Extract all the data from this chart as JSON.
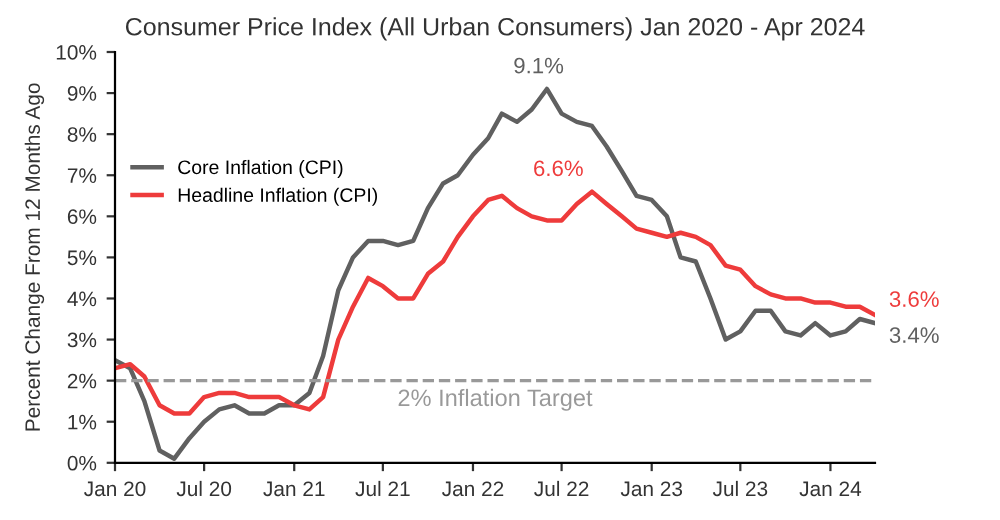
{
  "chart_data": {
    "type": "line",
    "title": "Consumer Price Index (All Urban Consumers) Jan 2020 - Apr 2024",
    "ylabel": "Percent Change From 12 Months Ago",
    "x": [
      "2020-01",
      "2020-02",
      "2020-03",
      "2020-04",
      "2020-05",
      "2020-06",
      "2020-07",
      "2020-08",
      "2020-09",
      "2020-10",
      "2020-11",
      "2020-12",
      "2021-01",
      "2021-02",
      "2021-03",
      "2021-04",
      "2021-05",
      "2021-06",
      "2021-07",
      "2021-08",
      "2021-09",
      "2021-10",
      "2021-11",
      "2021-12",
      "2022-01",
      "2022-02",
      "2022-03",
      "2022-04",
      "2022-05",
      "2022-06",
      "2022-07",
      "2022-08",
      "2022-09",
      "2022-10",
      "2022-11",
      "2022-12",
      "2023-01",
      "2023-02",
      "2023-03",
      "2023-04",
      "2023-05",
      "2023-06",
      "2023-07",
      "2023-08",
      "2023-09",
      "2023-10",
      "2023-11",
      "2023-12",
      "2024-01",
      "2024-02",
      "2024-03",
      "2024-04"
    ],
    "series": [
      {
        "name": "Core Inflation (CPI)",
        "color": "#606060",
        "values": [
          2.5,
          2.3,
          1.5,
          0.3,
          0.1,
          0.6,
          1.0,
          1.3,
          1.4,
          1.2,
          1.2,
          1.4,
          1.4,
          1.7,
          2.6,
          4.2,
          5.0,
          5.4,
          5.4,
          5.3,
          5.4,
          6.2,
          6.8,
          7.0,
          7.5,
          7.9,
          8.5,
          8.3,
          8.6,
          9.1,
          8.5,
          8.3,
          8.2,
          7.7,
          7.1,
          6.5,
          6.4,
          6.0,
          5.0,
          4.9,
          4.0,
          3.0,
          3.2,
          3.7,
          3.7,
          3.2,
          3.1,
          3.4,
          3.1,
          3.2,
          3.5,
          3.4
        ]
      },
      {
        "name": "Headline Inflation (CPI)",
        "color": "#ee3b3b",
        "values": [
          2.3,
          2.4,
          2.1,
          1.4,
          1.2,
          1.2,
          1.6,
          1.7,
          1.7,
          1.6,
          1.6,
          1.6,
          1.4,
          1.3,
          1.6,
          3.0,
          3.8,
          4.5,
          4.3,
          4.0,
          4.0,
          4.6,
          4.9,
          5.5,
          6.0,
          6.4,
          6.5,
          6.2,
          6.0,
          5.9,
          5.9,
          6.3,
          6.6,
          6.3,
          6.0,
          5.7,
          5.6,
          5.5,
          5.6,
          5.5,
          5.3,
          4.8,
          4.7,
          4.3,
          4.1,
          4.0,
          4.0,
          3.9,
          3.9,
          3.8,
          3.8,
          3.6
        ]
      }
    ],
    "xlim": [
      "2020-01",
      "2024-04"
    ],
    "xticks": [
      {
        "value": "2020-01",
        "label": "Jan 20"
      },
      {
        "value": "2020-07",
        "label": "Jul 20"
      },
      {
        "value": "2021-01",
        "label": "Jan 21"
      },
      {
        "value": "2021-07",
        "label": "Jul 21"
      },
      {
        "value": "2022-01",
        "label": "Jan 22"
      },
      {
        "value": "2022-07",
        "label": "Jul 22"
      },
      {
        "value": "2023-01",
        "label": "Jan 23"
      },
      {
        "value": "2023-07",
        "label": "Jul 23"
      },
      {
        "value": "2024-01",
        "label": "Jan 24"
      }
    ],
    "ylim": [
      0,
      10
    ],
    "yticks": [
      {
        "value": 0,
        "label": "0%"
      },
      {
        "value": 1,
        "label": "1%"
      },
      {
        "value": 2,
        "label": "2%"
      },
      {
        "value": 3,
        "label": "3%"
      },
      {
        "value": 4,
        "label": "4%"
      },
      {
        "value": 5,
        "label": "5%"
      },
      {
        "value": 6,
        "label": "6%"
      },
      {
        "value": 7,
        "label": "7%"
      },
      {
        "value": 8,
        "label": "8%"
      },
      {
        "value": 9,
        "label": "9%"
      },
      {
        "value": 10,
        "label": "10%"
      }
    ],
    "ref_lines": [
      {
        "axis": "y",
        "value": 2,
        "label": "2% Inflation Target",
        "color": "#999999",
        "line_style": "dashed"
      }
    ],
    "annotations": [
      {
        "text": "9.1%",
        "x": "2022-06",
        "y": 9.1
      },
      {
        "text": "6.6%",
        "x": "2022-09",
        "y": 6.6
      },
      {
        "text": "3.6%",
        "x": "2024-04",
        "y": 3.6
      },
      {
        "text": "3.4%",
        "x": "2024-04",
        "y": 3.4
      }
    ],
    "grid": false,
    "legend": "top left",
    "line_style": "solid",
    "marker": "none"
  }
}
